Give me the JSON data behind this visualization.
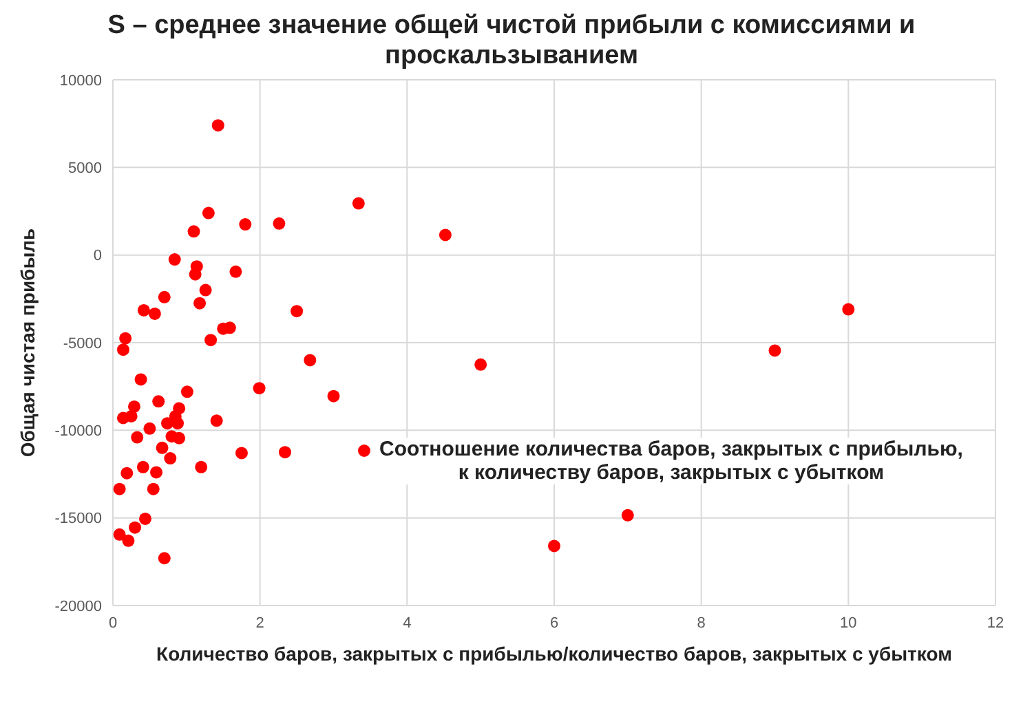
{
  "chart_data": {
    "type": "scatter",
    "title": "S – среднее значение общей чистой прибыли с комиссиями и проскальзыванием",
    "xlabel": "Количество баров, закрытых с прибылью/количество баров, закрытых с убытком",
    "ylabel": "Общая чистая прибыль",
    "xlim": [
      0,
      12
    ],
    "xticks": [
      0,
      2,
      4,
      6,
      8,
      10,
      12
    ],
    "ylim": [
      -20000,
      10000
    ],
    "yticks": [
      -20000,
      -15000,
      -10000,
      -5000,
      0,
      5000,
      10000
    ],
    "grid": true,
    "legend": "right",
    "marker": "circle",
    "series": [
      {
        "name": "Соотношение количества баров, закрытых с прибылью, к количеству баров, закрытых с убытком",
        "color": "#ff0000",
        "x": [
          1.43,
          1.3,
          1.1,
          1.8,
          2.26,
          3.34,
          4.52,
          0.84,
          1.14,
          1.12,
          1.67,
          1.26,
          0.7,
          1.18,
          0.42,
          0.57,
          2.5,
          0.17,
          1.33,
          1.5,
          1.59,
          10,
          9,
          2.68,
          5,
          3,
          2.34,
          6,
          7,
          0.14,
          0.38,
          1.99,
          1.01,
          0.62,
          0.29,
          0.9,
          0.14,
          0.25,
          0.85,
          1.41,
          0.5,
          0.74,
          0.88,
          0.33,
          0.8,
          0.9,
          0.67,
          0.78,
          1.75,
          0.41,
          0.59,
          0.19,
          1.2,
          0.09,
          0.55,
          0.44,
          0.3,
          0.09,
          0.21,
          0.7
        ],
        "values": [
          7400,
          2400,
          1350,
          1750,
          1800,
          2950,
          1150,
          -250,
          -650,
          -1100,
          -950,
          -2000,
          -2400,
          -2750,
          -3150,
          -3350,
          -3200,
          -4750,
          -4850,
          -4200,
          -4150,
          -3100,
          -5450,
          -6000,
          -6250,
          -8050,
          -11250,
          -16600,
          -14850,
          -5400,
          -7100,
          -7600,
          -7800,
          -8350,
          -8650,
          -8750,
          -9300,
          -9200,
          -9200,
          -9450,
          -9900,
          -9600,
          -9600,
          -10400,
          -10350,
          -10450,
          -11000,
          -11600,
          -11300,
          -12100,
          -12400,
          -12450,
          -12100,
          -13350,
          -13350,
          -15050,
          -15550,
          -15950,
          -16300,
          -17300
        ]
      }
    ]
  }
}
